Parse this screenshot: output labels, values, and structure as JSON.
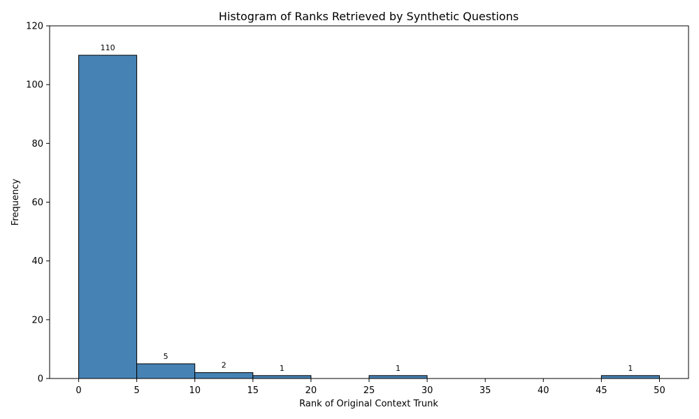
{
  "chart_data": {
    "type": "bar",
    "title": "Histogram of Ranks Retrieved by Synthetic Questions",
    "xlabel": "Rank of Original Context Trunk",
    "ylabel": "Frequency",
    "bins": [
      {
        "start": 0,
        "end": 5,
        "value": 110
      },
      {
        "start": 5,
        "end": 10,
        "value": 5
      },
      {
        "start": 10,
        "end": 15,
        "value": 2
      },
      {
        "start": 15,
        "end": 20,
        "value": 1
      },
      {
        "start": 20,
        "end": 25,
        "value": 0
      },
      {
        "start": 25,
        "end": 30,
        "value": 1
      },
      {
        "start": 30,
        "end": 35,
        "value": 0
      },
      {
        "start": 35,
        "end": 40,
        "value": 0
      },
      {
        "start": 40,
        "end": 45,
        "value": 0
      },
      {
        "start": 45,
        "end": 50,
        "value": 1
      }
    ],
    "data_labels": [
      "110",
      "5",
      "2",
      "1",
      "",
      "1",
      "",
      "",
      "",
      "1"
    ],
    "xticks": [
      "0",
      "5",
      "10",
      "15",
      "20",
      "25",
      "30",
      "35",
      "40",
      "45",
      "50"
    ],
    "yticks": [
      "0",
      "20",
      "40",
      "60",
      "80",
      "100",
      "120"
    ],
    "xlim": [
      -2.5,
      52.5
    ],
    "ylim": [
      0,
      120
    ],
    "grid": false,
    "bar_color": "#4682b4",
    "edge_color": "#000000"
  }
}
